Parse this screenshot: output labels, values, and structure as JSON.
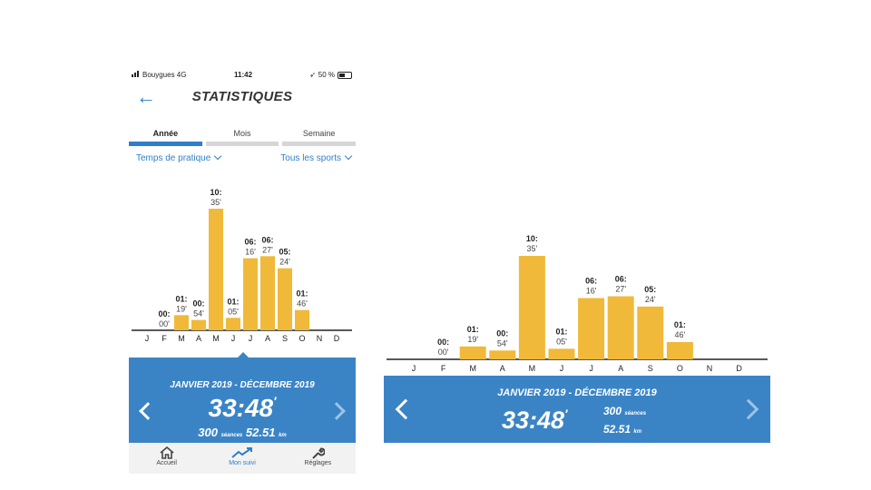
{
  "status": {
    "carrier": "Bouygues  4G",
    "time": "11:42",
    "battery": "50 %"
  },
  "header": {
    "title": "STATISTIQUES"
  },
  "tabs": [
    {
      "label": "Année"
    },
    {
      "label": "Mois"
    },
    {
      "label": "Semaine"
    }
  ],
  "filters": {
    "metric": "Temps de pratique",
    "sport": "Tous les sports"
  },
  "colors": {
    "accent": "#2f7ec9",
    "panel": "#3a84c6",
    "bar": "#f0b93a"
  },
  "chart_data": {
    "type": "bar",
    "categories": [
      "J",
      "F",
      "M",
      "A",
      "M",
      "J",
      "J",
      "A",
      "S",
      "O",
      "N",
      "D"
    ],
    "values_minutes": [
      0,
      0,
      79,
      54,
      635,
      65,
      376,
      387,
      324,
      106,
      null,
      null
    ],
    "value_labels_line1": [
      "",
      "00:",
      "01:",
      "00:",
      "10:",
      "01:",
      "06:",
      "06:",
      "05:",
      "01:",
      "",
      ""
    ],
    "value_labels_line2": [
      "",
      "00'",
      "19'",
      "54'",
      "35'",
      "05'",
      "16'",
      "27'",
      "24'",
      "46'",
      "",
      ""
    ]
  },
  "summary": {
    "range": "JANVIER 2019 - DÉCEMBRE 2019",
    "total_time": "33:48",
    "total_time_suffix": "'",
    "sessions": "300",
    "sessions_label": "séances",
    "distance": "52.51",
    "distance_unit": "km"
  },
  "nav": [
    {
      "label": "Accueil",
      "icon": "home-icon"
    },
    {
      "label": "Mon suivi",
      "icon": "trend-icon"
    },
    {
      "label": "Réglages",
      "icon": "wrench-icon"
    }
  ]
}
